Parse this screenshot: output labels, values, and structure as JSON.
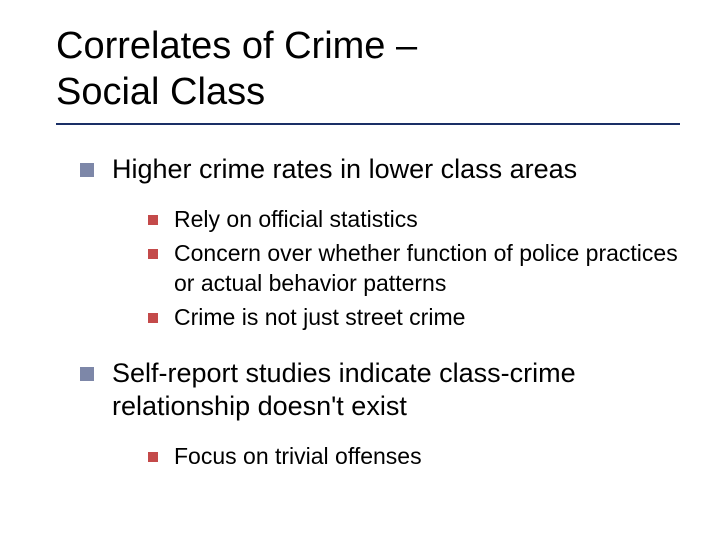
{
  "colors": {
    "background": "#ffffff",
    "text": "#000000",
    "underline": "#1a2f66",
    "bullet_l1": "#7d87a8",
    "bullet_l2": "#c44a4a"
  },
  "title": {
    "line1": "Correlates of Crime –",
    "line2": "Social Class",
    "fontsize": 38
  },
  "fontsize_l1": 27,
  "fontsize_l2": 23,
  "content": [
    {
      "text": "Higher crime rates in lower class areas",
      "children": [
        {
          "text": "Rely on official statistics"
        },
        {
          "text": "Concern over whether function of police practices or actual behavior patterns"
        },
        {
          "text": "Crime is not just street crime"
        }
      ]
    },
    {
      "text": "Self-report studies indicate class-crime relationship doesn't exist",
      "children": [
        {
          "text": "Focus on trivial offenses"
        }
      ]
    }
  ]
}
